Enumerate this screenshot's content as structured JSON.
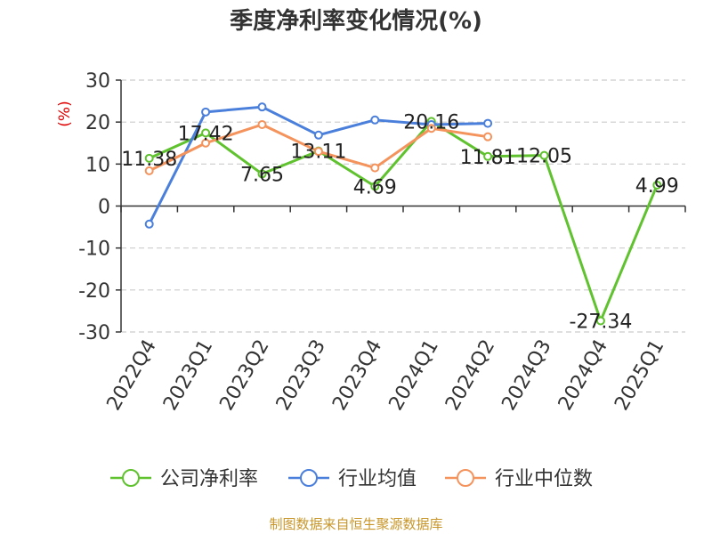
{
  "chart_data": {
    "type": "line",
    "title": "季度净利率变化情况(%)",
    "ylabel": "(%)",
    "xlabel": "",
    "categories": [
      "2022Q4",
      "2023Q1",
      "2023Q2",
      "2023Q3",
      "2023Q4",
      "2024Q1",
      "2024Q2",
      "2024Q3",
      "2024Q4",
      "2025Q1"
    ],
    "ylim": [
      -30,
      30
    ],
    "yticks": [
      "30",
      "20",
      "10",
      "0",
      "-10",
      "-20",
      "-30"
    ],
    "grid": true,
    "legend_position": "bottom",
    "series": [
      {
        "name": "公司净利率",
        "color": "#5fc22e",
        "values": [
          11.38,
          17.42,
          7.65,
          13.11,
          4.69,
          20.16,
          11.81,
          12.05,
          -27.34,
          4.99
        ],
        "labels": [
          "11.38",
          "17.42",
          "7.65",
          "13.11",
          "4.69",
          "20.16",
          "11.81",
          "12.05",
          "-27.34",
          "4.99"
        ]
      },
      {
        "name": "行业均值",
        "color": "#4a7fdb",
        "values": [
          -4.3,
          22.4,
          23.6,
          16.9,
          20.5,
          19.4,
          19.7,
          null,
          null,
          null
        ]
      },
      {
        "name": "行业中位数",
        "color": "#f4935c",
        "values": [
          8.4,
          15.0,
          19.4,
          13.0,
          9.1,
          18.5,
          16.5,
          null,
          null,
          null
        ]
      }
    ]
  },
  "source_text": "制图数据来自恒生聚源数据库"
}
